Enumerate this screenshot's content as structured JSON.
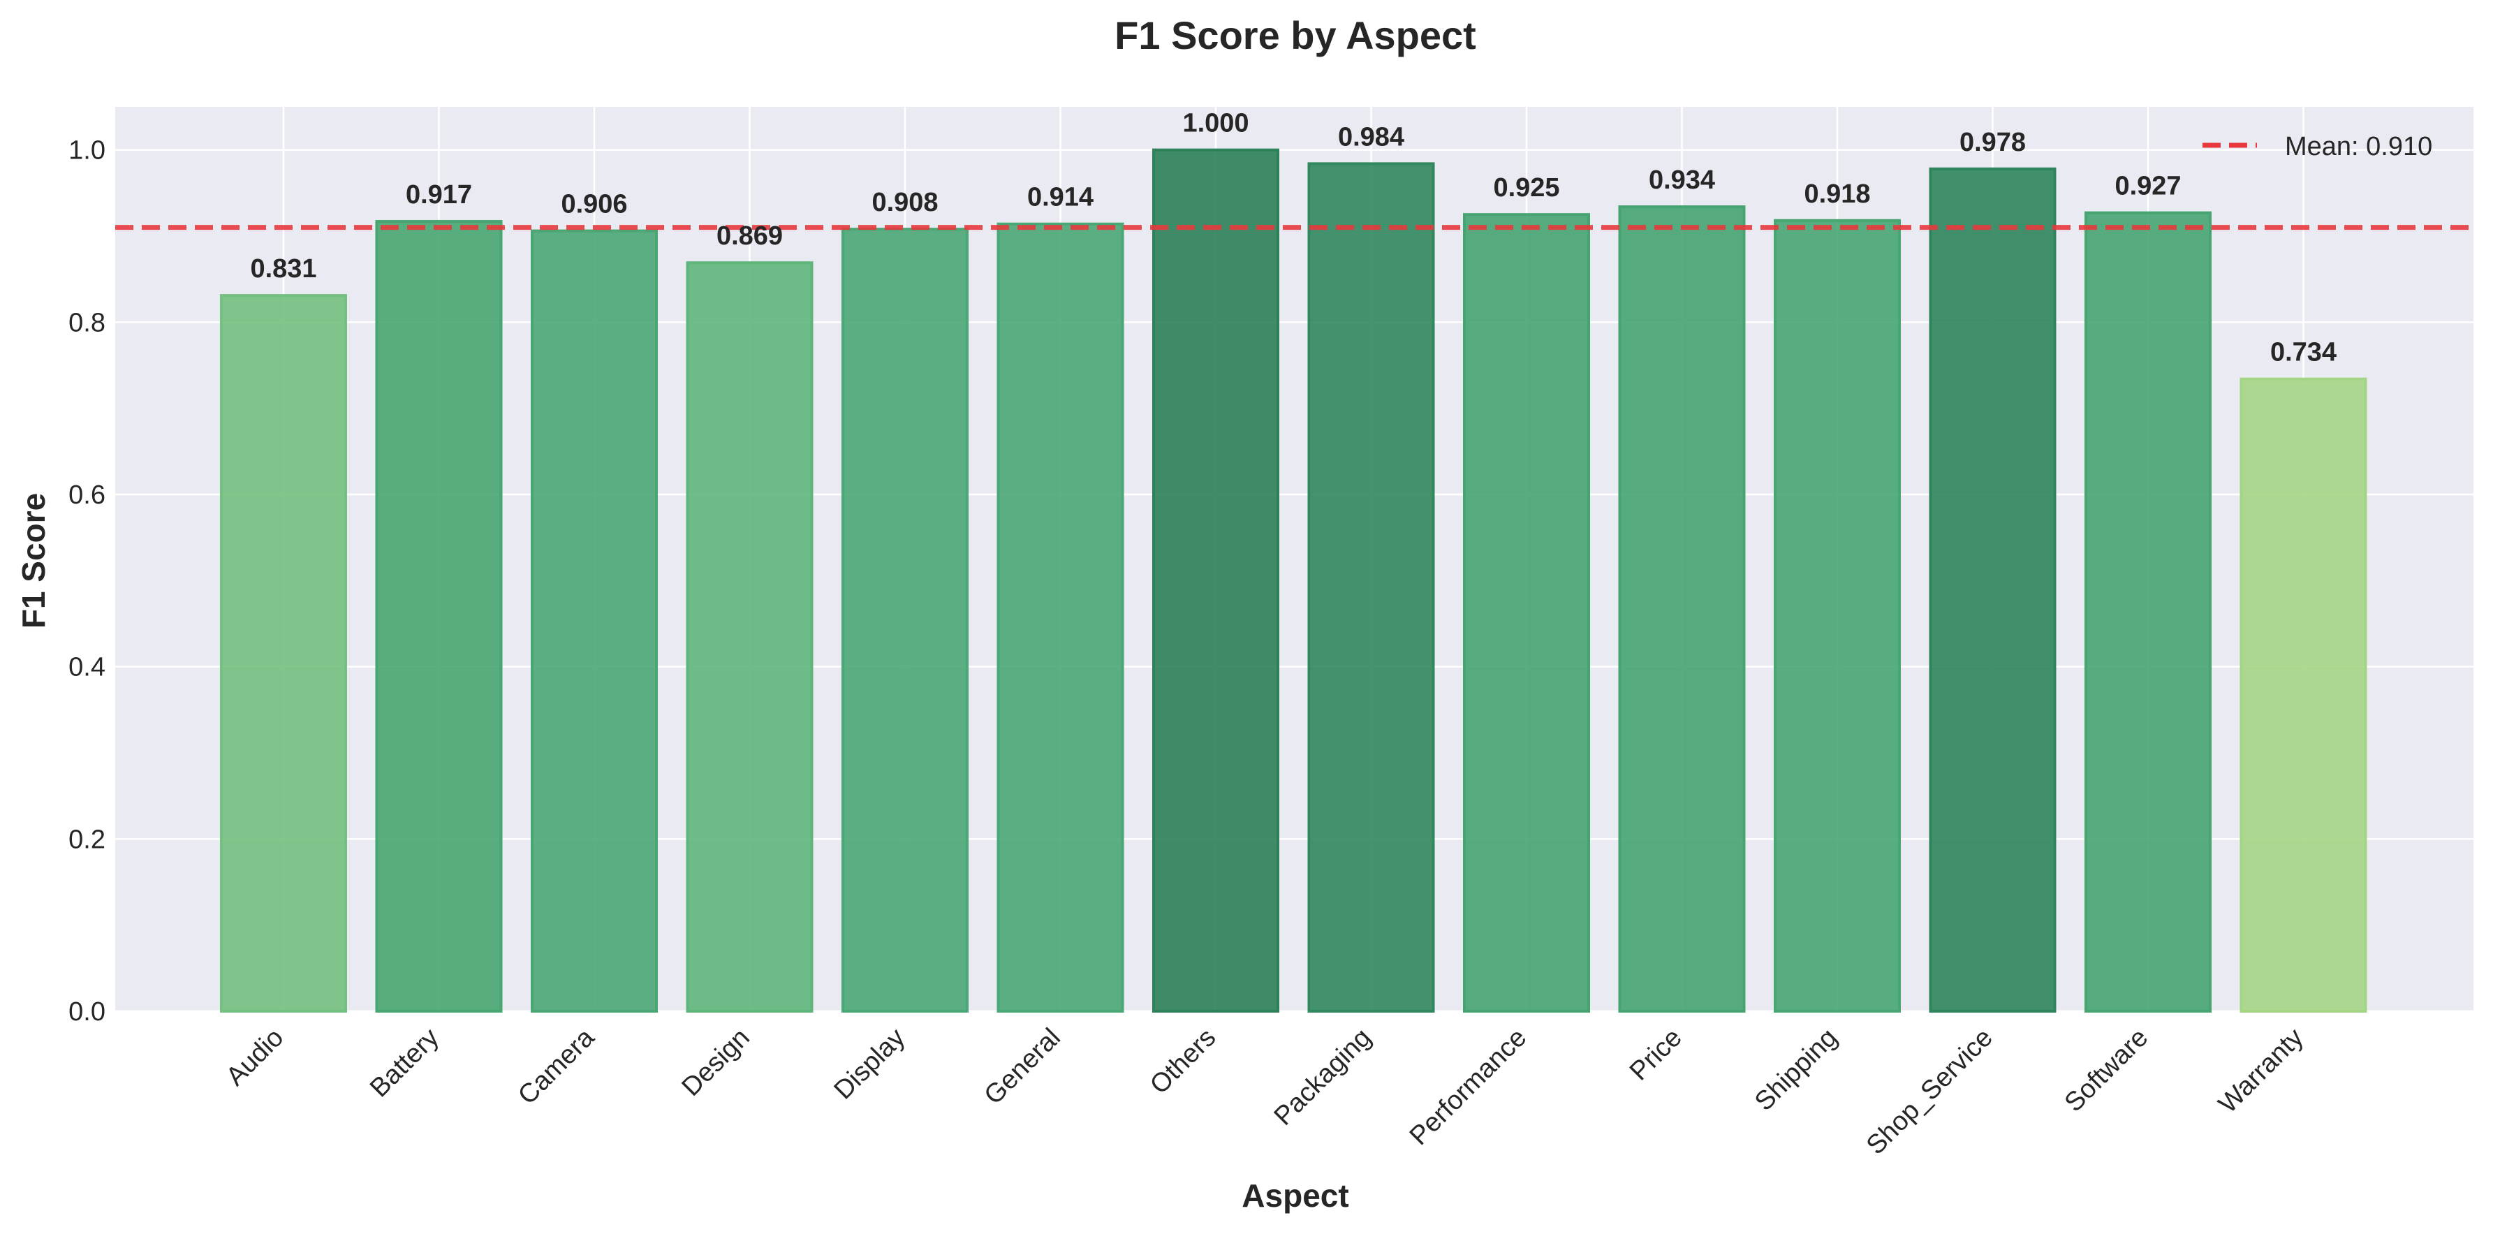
{
  "chart_data": {
    "type": "bar",
    "title": "F1 Score by Aspect",
    "xlabel": "Aspect",
    "ylabel": "F1 Score",
    "ylim": [
      0.0,
      1.05
    ],
    "yticks": [
      "0.0",
      "0.2",
      "0.4",
      "0.6",
      "0.8",
      "1.0"
    ],
    "categories": [
      "Audio",
      "Battery",
      "Camera",
      "Design",
      "Display",
      "General",
      "Others",
      "Packaging",
      "Performance",
      "Price",
      "Shipping",
      "Shop_Service",
      "Software",
      "Warranty"
    ],
    "values": [
      0.831,
      0.917,
      0.906,
      0.869,
      0.908,
      0.914,
      1.0,
      0.984,
      0.925,
      0.934,
      0.918,
      0.978,
      0.927,
      0.734
    ],
    "value_labels": [
      "0.831",
      "0.917",
      "0.906",
      "0.869",
      "0.908",
      "0.914",
      "1.000",
      "0.984",
      "0.925",
      "0.934",
      "0.918",
      "0.978",
      "0.927",
      "0.734"
    ],
    "bar_colors": [
      "#74c080",
      "#47a671",
      "#4aa774",
      "#5fb67b",
      "#4aa776",
      "#4aa776",
      "#2e8158",
      "#32885e",
      "#46a471",
      "#46a471",
      "#47a672",
      "#2f855b",
      "#46a571",
      "#a4d585"
    ],
    "mean": 0.91,
    "mean_label": "Mean: 0.910",
    "mean_color": "#e8383d",
    "grid": true,
    "legend_position": "top-right",
    "background": "#eaeaf2"
  }
}
